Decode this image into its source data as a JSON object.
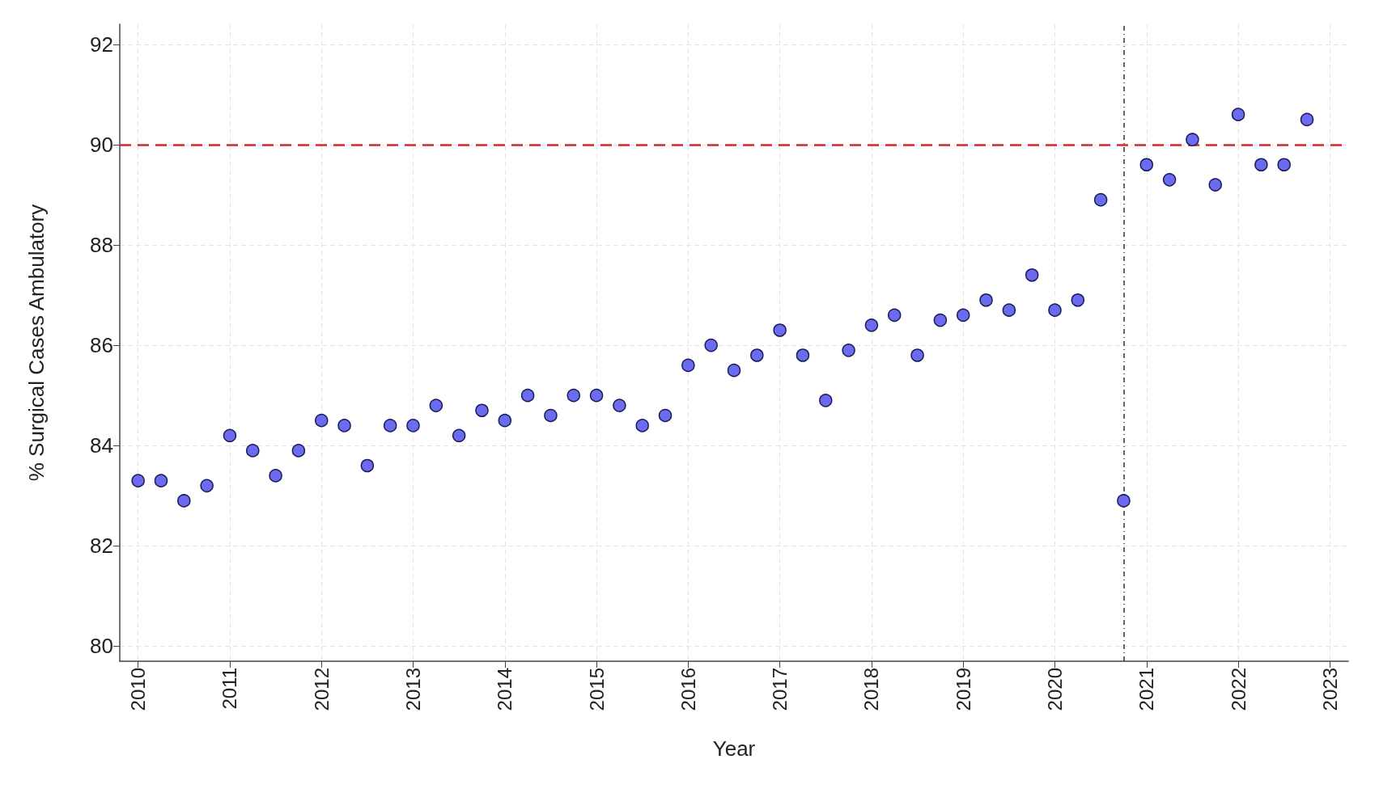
{
  "chart_data": {
    "type": "scatter",
    "xlabel": "Year",
    "ylabel": "% Surgical Cases Ambulatory",
    "x": [
      2010,
      2010.25,
      2010.5,
      2010.75,
      2011,
      2011.25,
      2011.5,
      2011.75,
      2012,
      2012.25,
      2012.5,
      2012.75,
      2013,
      2013.25,
      2013.5,
      2013.75,
      2014,
      2014.25,
      2014.5,
      2014.75,
      2015,
      2015.25,
      2015.5,
      2015.75,
      2016,
      2016.25,
      2016.5,
      2016.75,
      2017,
      2017.25,
      2017.5,
      2017.75,
      2018,
      2018.25,
      2018.5,
      2018.75,
      2019,
      2019.25,
      2019.5,
      2019.75,
      2020,
      2020.25,
      2020.5,
      2020.75,
      2021,
      2021.25,
      2021.5,
      2021.75,
      2022,
      2022.25,
      2022.5,
      2022.75
    ],
    "series": [
      {
        "color": "#6b6bf0",
        "values": [
          83.3,
          83.3,
          82.9,
          83.2,
          84.2,
          83.9,
          83.4,
          83.9,
          84.5,
          84.4,
          83.6,
          84.4,
          84.4,
          84.8,
          84.2,
          84.7,
          84.5,
          85.0,
          84.6,
          85.0,
          85.0,
          84.8,
          84.4,
          84.6,
          85.6,
          86.0,
          85.5,
          85.8,
          86.3,
          85.8,
          84.9,
          85.9,
          86.4,
          86.6,
          85.8,
          86.5,
          86.6,
          86.9,
          86.7,
          87.4,
          86.7,
          86.9,
          88.9,
          82.9,
          89.6,
          89.3,
          90.1,
          89.2,
          90.6,
          89.6,
          89.6,
          90.5
        ]
      }
    ],
    "xlim": [
      2009.8,
      2023.2
    ],
    "xticks": [
      2010,
      2011,
      2012,
      2013,
      2014,
      2015,
      2016,
      2017,
      2018,
      2019,
      2020,
      2021,
      2022,
      2023
    ],
    "ylim": [
      79.7,
      92.4
    ],
    "yticks": [
      80,
      82,
      84,
      86,
      88,
      90,
      92
    ],
    "ref_lines": [
      {
        "axis": "y",
        "value": 90,
        "color": "#d62828",
        "line_style": "dashed"
      },
      {
        "axis": "x",
        "value": 2020.75,
        "color": "#333333",
        "line_style": "dotted"
      }
    ],
    "grid": true,
    "marker": "circle"
  }
}
